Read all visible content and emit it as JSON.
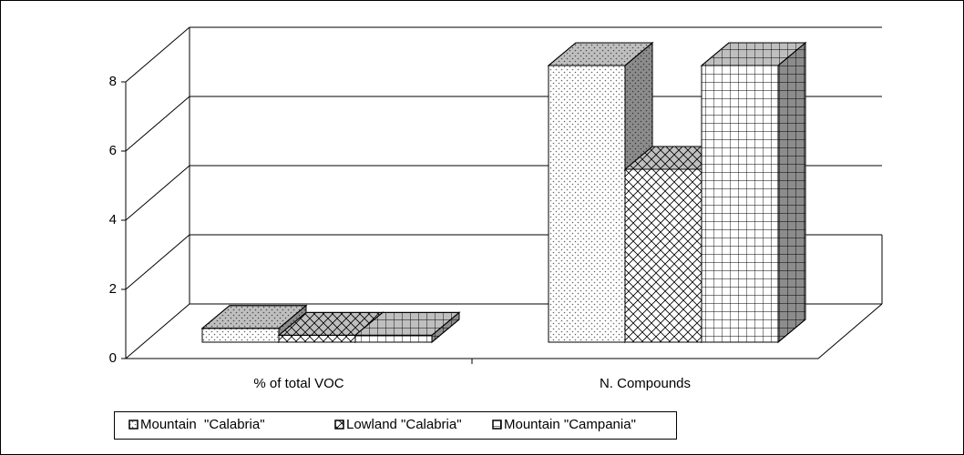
{
  "chart_data": {
    "type": "bar3d",
    "categories": [
      "% of total VOC",
      "N. Compounds"
    ],
    "series": [
      {
        "name": "Mountain  \"Calabria\"",
        "pattern": "dots",
        "values": [
          0.4,
          8
        ]
      },
      {
        "name": "Lowland \"Calabria\"",
        "pattern": "diamonds",
        "values": [
          0.2,
          5
        ]
      },
      {
        "name": "Mountain \"Campania\"",
        "pattern": "grid",
        "values": [
          0.2,
          8
        ]
      }
    ],
    "ylim": [
      0,
      8
    ],
    "yticks": [
      0,
      2,
      4,
      6,
      8
    ],
    "grid": true,
    "legend": "bottom"
  }
}
